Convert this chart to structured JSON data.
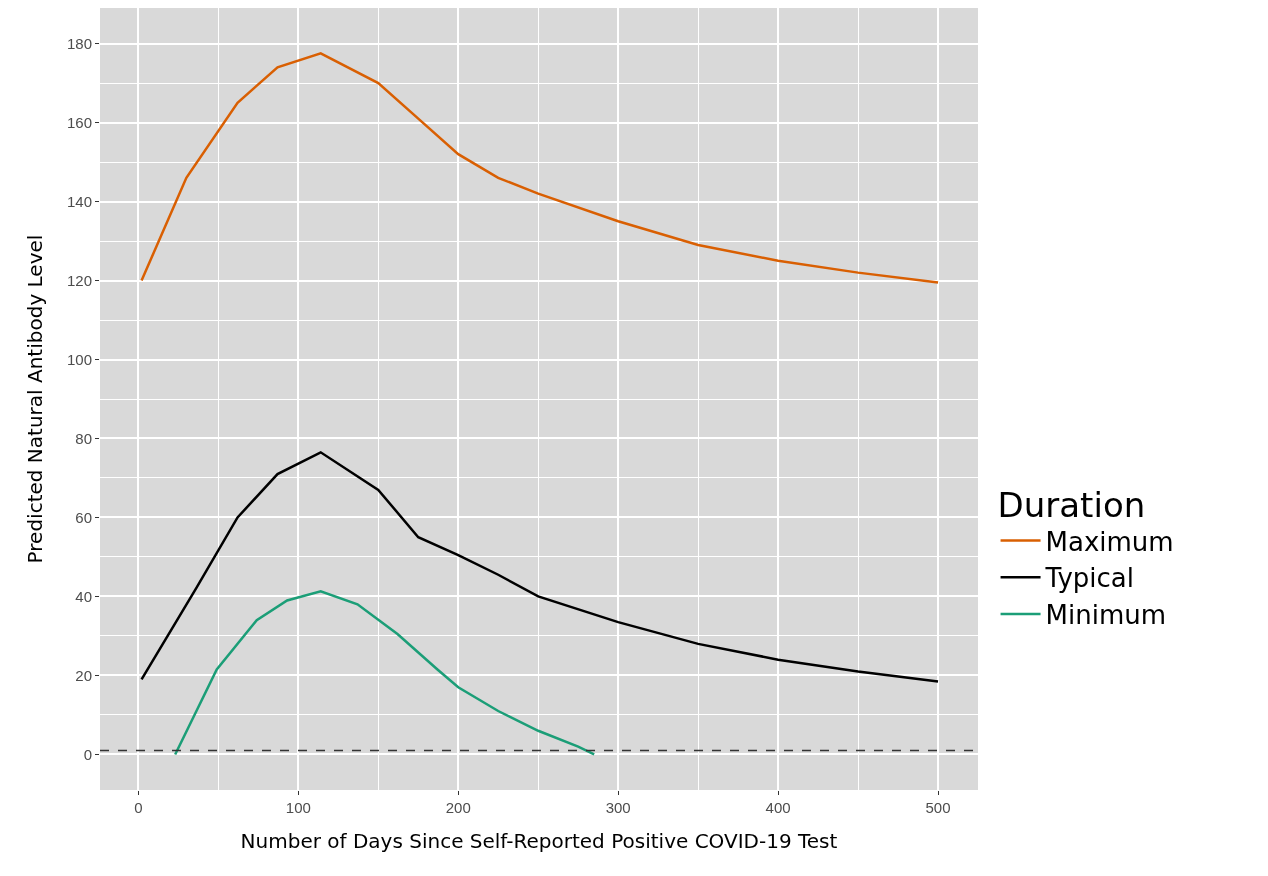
{
  "chart_data": {
    "type": "line",
    "xlabel": "Number of Days Since Self-Reported Positive COVID-19 Test",
    "ylabel": "Predicted Natural Antibody Level",
    "legend_title": "Duration",
    "legend": "right",
    "grid": true,
    "marker": "none",
    "line_style": "solid",
    "xlim": [
      -24,
      525
    ],
    "ylim": [
      -9,
      189
    ],
    "xticks": [
      0,
      100,
      200,
      300,
      400,
      500
    ],
    "yticks": [
      0,
      20,
      40,
      60,
      80,
      100,
      120,
      140,
      160,
      180
    ],
    "ref_lines": [
      {
        "axis": "y",
        "value": 1,
        "label": null,
        "color": "#333333",
        "line_style": "dashed"
      }
    ],
    "series": [
      {
        "name": "Maximum",
        "color": "#d95f02",
        "x": [
          2,
          30,
          62,
          87,
          114,
          150,
          175,
          200,
          225,
          250,
          300,
          350,
          400,
          450,
          500
        ],
        "values": [
          120,
          146,
          165,
          174,
          177.5,
          170,
          161,
          152,
          146,
          142,
          135,
          129,
          125,
          122,
          119.5
        ]
      },
      {
        "name": "Typical",
        "color": "#000000",
        "x": [
          2,
          36,
          62,
          87,
          114,
          150,
          175,
          200,
          225,
          250,
          300,
          350,
          400,
          450,
          500
        ],
        "values": [
          19,
          42,
          60,
          71,
          76.5,
          67,
          55,
          50.5,
          45.5,
          40,
          33.5,
          28,
          24,
          21,
          18.5
        ]
      },
      {
        "name": "Minimum",
        "color": "#1b9e77",
        "x": [
          23,
          49,
          74,
          93,
          114,
          137,
          162,
          187,
          200,
          225,
          250,
          275,
          285
        ],
        "values": [
          0,
          21.5,
          34,
          39,
          41.3,
          38,
          30.5,
          21.5,
          17,
          11,
          6,
          2,
          0
        ]
      }
    ]
  }
}
